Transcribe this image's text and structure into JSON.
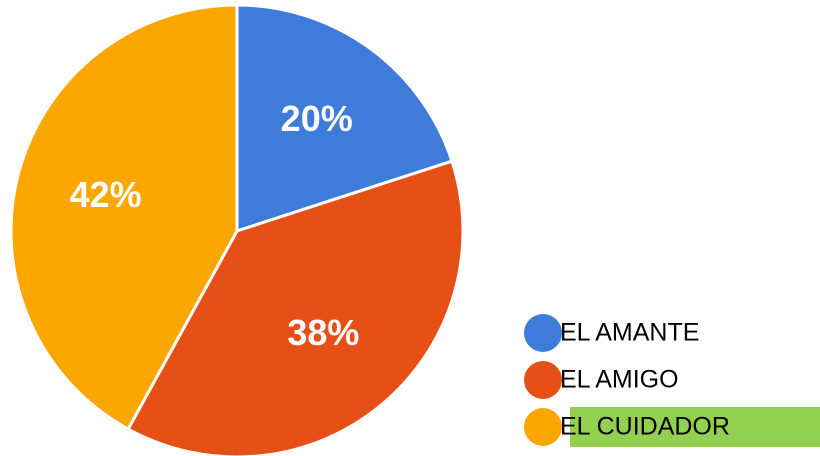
{
  "chart_data": {
    "type": "pie",
    "categories": [
      "EL AMANTE",
      "EL AMIGO",
      "EL CUIDADOR"
    ],
    "values": [
      20,
      38,
      42
    ],
    "value_labels": [
      "20%",
      "38%",
      "42%"
    ],
    "colors": [
      "#3f7bd9",
      "#e65016",
      "#fca600"
    ],
    "legend_highlights": [
      null,
      null,
      "#92d050"
    ],
    "legend": "bottom-right"
  }
}
